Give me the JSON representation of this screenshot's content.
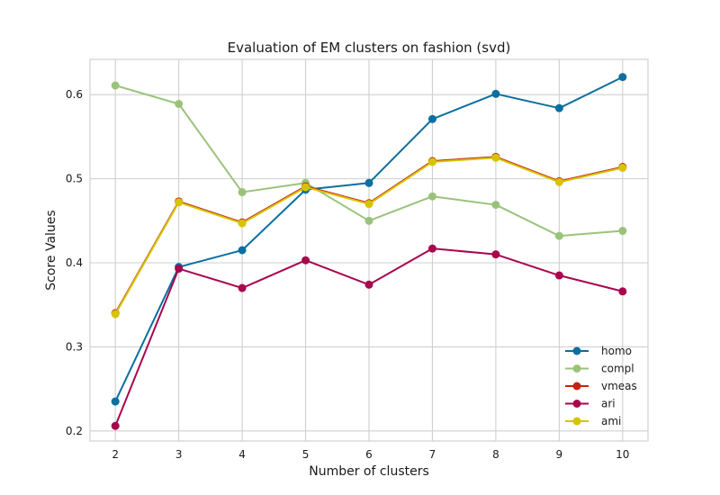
{
  "chart_data": {
    "type": "line",
    "title": "Evaluation of EM clusters on fashion (svd)",
    "xlabel": "Number of clusters",
    "ylabel": "Score Values",
    "x": [
      2,
      3,
      4,
      5,
      6,
      7,
      8,
      9,
      10
    ],
    "xlim": [
      1.6,
      10.4
    ],
    "ylim": [
      0.188,
      0.642
    ],
    "yticks": [
      0.2,
      0.3,
      0.4,
      0.5,
      0.6
    ],
    "ytick_labels": [
      "0.2",
      "0.3",
      "0.4",
      "0.5",
      "0.6"
    ],
    "xtick_labels": [
      "2",
      "3",
      "4",
      "5",
      "6",
      "7",
      "8",
      "9",
      "10"
    ],
    "grid": true,
    "legend_position": "bottom-right",
    "series": [
      {
        "name": "homo",
        "color": "#0b6fa0",
        "values": [
          0.235,
          0.395,
          0.415,
          0.487,
          0.495,
          0.571,
          0.601,
          0.584,
          0.621
        ]
      },
      {
        "name": "compl",
        "color": "#9ac37a",
        "values": [
          0.611,
          0.589,
          0.484,
          0.495,
          0.45,
          0.479,
          0.469,
          0.432,
          0.438
        ]
      },
      {
        "name": "vmeas",
        "color": "#c42411",
        "values": [
          0.34,
          0.473,
          0.448,
          0.491,
          0.471,
          0.521,
          0.526,
          0.497,
          0.514
        ]
      },
      {
        "name": "ari",
        "color": "#a8064f",
        "values": [
          0.206,
          0.393,
          0.37,
          0.403,
          0.374,
          0.417,
          0.41,
          0.385,
          0.366
        ]
      },
      {
        "name": "ami",
        "color": "#d6c400",
        "values": [
          0.339,
          0.472,
          0.447,
          0.49,
          0.47,
          0.52,
          0.525,
          0.496,
          0.513
        ]
      }
    ]
  }
}
